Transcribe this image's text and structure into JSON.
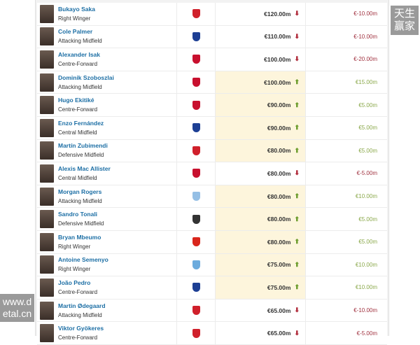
{
  "club_colors": {
    "arsenal": "#d0202b",
    "chelsea": "#1d3f94",
    "liverpool": "#c8102e",
    "aston-villa": "#95bfe5",
    "newcastle": "#333333",
    "man-utd": "#d9261c",
    "man-city": "#6cabdd"
  },
  "rows": [
    {
      "name": "Bukayo Saka",
      "position": "Right Winger",
      "club": "arsenal",
      "value": "€120.00m",
      "trend": "down",
      "change": "€-10.00m"
    },
    {
      "name": "Cole Palmer",
      "position": "Attacking Midfield",
      "club": "chelsea",
      "value": "€110.00m",
      "trend": "down",
      "change": "€-10.00m"
    },
    {
      "name": "Alexander Isak",
      "position": "Centre-Forward",
      "club": "liverpool",
      "value": "€100.00m",
      "trend": "down",
      "change": "€-20.00m"
    },
    {
      "name": "Dominik Szoboszlai",
      "position": "Attacking Midfield",
      "club": "liverpool",
      "value": "€100.00m",
      "trend": "up",
      "change": "€15.00m"
    },
    {
      "name": "Hugo Ekitiké",
      "position": "Centre-Forward",
      "club": "liverpool",
      "value": "€90.00m",
      "trend": "up",
      "change": "€5.00m"
    },
    {
      "name": "Enzo Fernández",
      "position": "Central Midfield",
      "club": "chelsea",
      "value": "€90.00m",
      "trend": "up",
      "change": "€5.00m"
    },
    {
      "name": "Martín Zubimendi",
      "position": "Defensive Midfield",
      "club": "arsenal",
      "value": "€80.00m",
      "trend": "up",
      "change": "€5.00m"
    },
    {
      "name": "Alexis Mac Allister",
      "position": "Central Midfield",
      "club": "liverpool",
      "value": "€80.00m",
      "trend": "down",
      "change": "€-5.00m"
    },
    {
      "name": "Morgan Rogers",
      "position": "Attacking Midfield",
      "club": "aston-villa",
      "value": "€80.00m",
      "trend": "up",
      "change": "€10.00m"
    },
    {
      "name": "Sandro Tonali",
      "position": "Defensive Midfield",
      "club": "newcastle",
      "value": "€80.00m",
      "trend": "up",
      "change": "€5.00m"
    },
    {
      "name": "Bryan Mbeumo",
      "position": "Right Winger",
      "club": "man-utd",
      "value": "€80.00m",
      "trend": "up",
      "change": "€5.00m"
    },
    {
      "name": "Antoine Semenyo",
      "position": "Right Winger",
      "club": "man-city",
      "value": "€75.00m",
      "trend": "up",
      "change": "€10.00m"
    },
    {
      "name": "João Pedro",
      "position": "Centre-Forward",
      "club": "chelsea",
      "value": "€75.00m",
      "trend": "up",
      "change": "€10.00m"
    },
    {
      "name": "Martin Ødegaard",
      "position": "Attacking Midfield",
      "club": "arsenal",
      "value": "€65.00m",
      "trend": "down",
      "change": "€-10.00m"
    },
    {
      "name": "Viktor Gyökeres",
      "position": "Centre-Forward",
      "club": "arsenal",
      "value": "€65.00m",
      "trend": "down",
      "change": "€-5.00m"
    }
  ],
  "watermarks": {
    "top_right": "天生赢家",
    "bottom_left": "www.detal.cn"
  }
}
